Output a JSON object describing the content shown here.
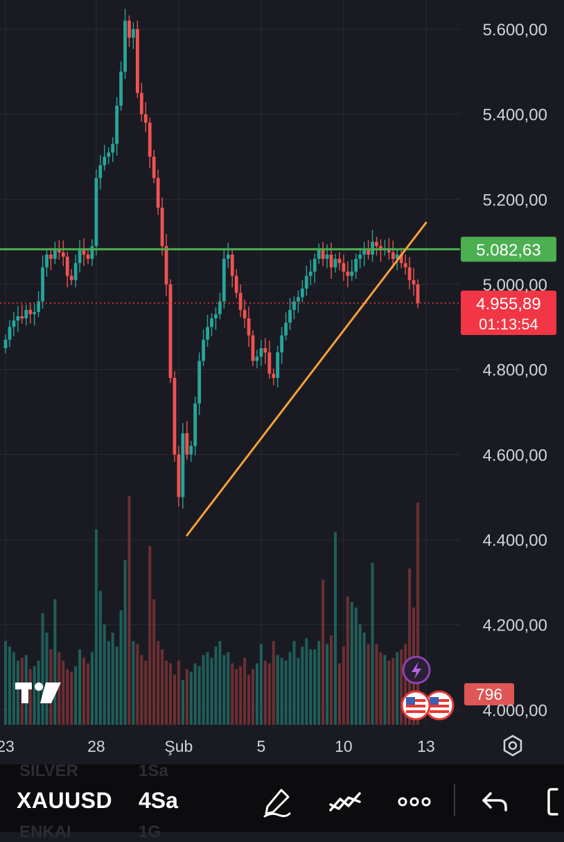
{
  "chart_data": {
    "type": "candlestick",
    "symbol": "XAUUSD",
    "interval": "4Sa",
    "ylim": [
      3980,
      5650
    ],
    "y_ticks": [
      "5.600,00",
      "5.400,00",
      "5.200,00",
      "5.000,00",
      "4.800,00",
      "4.600,00",
      "4.400,00",
      "4.200,00",
      "4.000,00"
    ],
    "y_tick_values": [
      5600,
      5400,
      5200,
      5000,
      4800,
      4600,
      4400,
      4200,
      4000
    ],
    "x_ticks": [
      "23",
      "28",
      "Şub",
      "5",
      "10",
      "13"
    ],
    "x_tick_index": [
      0,
      22,
      42,
      62,
      82,
      102
    ],
    "horizontal_level": {
      "label": "5.082,63",
      "value": 5082.63,
      "color": "#4caf50"
    },
    "current_price": {
      "label": "4.955,89",
      "value": 4955.89,
      "countdown": "01:13:54",
      "color": "#f23645"
    },
    "volume_label": "796",
    "trendline": {
      "from": {
        "index": 43,
        "value": 4410
      },
      "to": {
        "index": 102,
        "value": 5145
      },
      "color": "#f5a03a"
    },
    "colors": {
      "up": "#26a69a",
      "down": "#ef5350",
      "background": "#1a1b22",
      "grid": "#2a2b32",
      "axis_text": "#d1d4dc"
    },
    "closes": [
      4870,
      4900,
      4915,
      4925,
      4920,
      4940,
      4930,
      4935,
      4960,
      5040,
      5070,
      5060,
      5080,
      5075,
      5065,
      5020,
      5010,
      5050,
      5080,
      5070,
      5060,
      5090,
      5250,
      5280,
      5300,
      5310,
      5330,
      5420,
      5500,
      5620,
      5580,
      5600,
      5450,
      5400,
      5380,
      5300,
      5250,
      5180,
      5090,
      5000,
      4780,
      4600,
      4500,
      4650,
      4600,
      4620,
      4720,
      4820,
      4870,
      4900,
      4920,
      4930,
      4960,
      5060,
      5070,
      5020,
      4980,
      4940,
      4920,
      4880,
      4820,
      4830,
      4850,
      4840,
      4790,
      4780,
      4840,
      4880,
      4910,
      4940,
      4960,
      4970,
      4990,
      5020,
      5030,
      5060,
      5080,
      5060,
      5070,
      5040,
      5060,
      5050,
      5030,
      5020,
      5030,
      5060,
      5070,
      5080,
      5070,
      5100,
      5090,
      5080,
      5085,
      5075,
      5060,
      5070,
      5050,
      5040,
      5010,
      5000,
      4955.89
    ],
    "volumes": [
      300,
      280,
      260,
      230,
      240,
      250,
      200,
      210,
      230,
      400,
      330,
      270,
      450,
      260,
      230,
      200,
      190,
      210,
      270,
      240,
      220,
      260,
      700,
      480,
      360,
      300,
      330,
      280,
      410,
      590,
      820,
      300,
      290,
      250,
      230,
      640,
      450,
      300,
      270,
      230,
      220,
      180,
      230,
      160,
      200,
      190,
      220,
      210,
      250,
      260,
      240,
      280,
      300,
      250,
      260,
      220,
      200,
      210,
      240,
      180,
      200,
      220,
      290,
      230,
      220,
      300,
      250,
      240,
      230,
      260,
      300,
      240,
      280,
      310,
      270,
      270,
      300,
      520,
      290,
      320,
      690,
      220,
      280,
      460,
      440,
      420,
      360,
      330,
      290,
      580,
      290,
      260,
      250,
      230,
      240,
      260,
      270,
      290,
      560,
      420,
      796
    ]
  },
  "icons": {
    "logo": "tradingview-logo-icon",
    "events": [
      "lightning-icon",
      "us-flag-icon",
      "us-flag-icon"
    ],
    "settings": "settings-icon",
    "toolbar": [
      "pencil-icon",
      "chart-line-icon",
      "more-icon",
      "undo-icon"
    ]
  },
  "toolbar": {
    "symbol": "XAUUSD",
    "interval": "4Sa",
    "ghost_top": [
      "SILVER",
      "1Sa"
    ],
    "ghost_bottom": [
      "ENKAI",
      "1G"
    ]
  }
}
